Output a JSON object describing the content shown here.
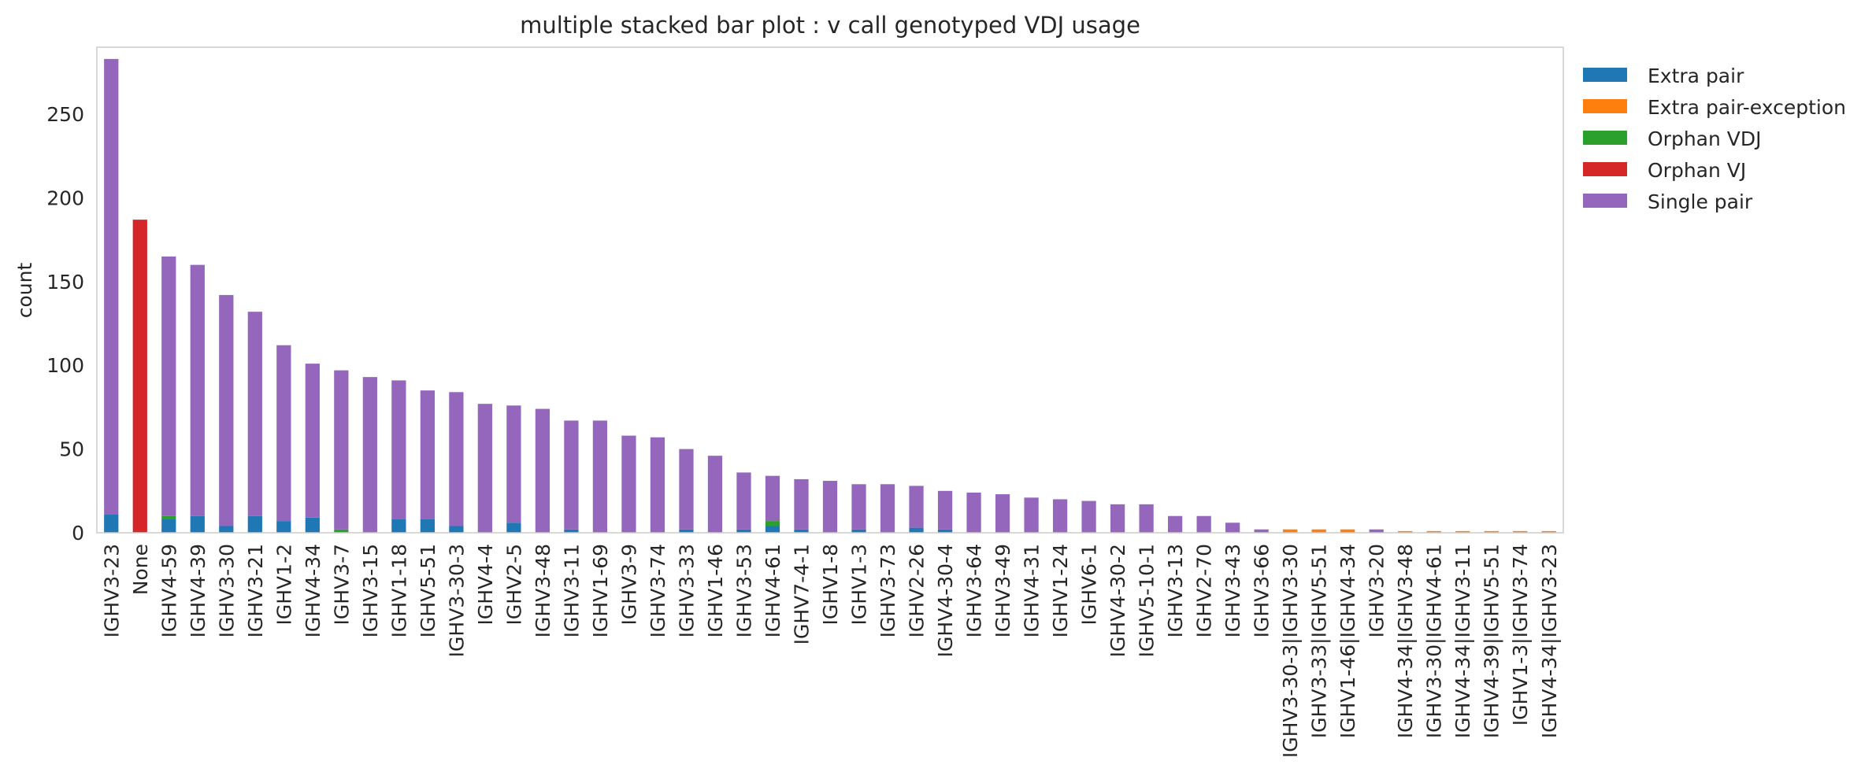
{
  "chart_data": {
    "type": "bar",
    "stacked": true,
    "title": "multiple stacked bar plot : v call genotyped VDJ usage",
    "xlabel": "",
    "ylabel": "count",
    "ylim": [
      0,
      290
    ],
    "yticks": [
      0,
      50,
      100,
      150,
      200,
      250
    ],
    "grid": false,
    "legend_position": "outside-right",
    "categories": [
      "IGHV3-23",
      "None",
      "IGHV4-59",
      "IGHV4-39",
      "IGHV3-30",
      "IGHV3-21",
      "IGHV1-2",
      "IGHV4-34",
      "IGHV3-7",
      "IGHV3-15",
      "IGHV1-18",
      "IGHV5-51",
      "IGHV3-30-3",
      "IGHV4-4",
      "IGHV2-5",
      "IGHV3-48",
      "IGHV3-11",
      "IGHV1-69",
      "IGHV3-9",
      "IGHV3-74",
      "IGHV3-33",
      "IGHV1-46",
      "IGHV3-53",
      "IGHV4-61",
      "IGHV7-4-1",
      "IGHV1-8",
      "IGHV1-3",
      "IGHV3-73",
      "IGHV2-26",
      "IGHV4-30-4",
      "IGHV3-64",
      "IGHV3-49",
      "IGHV4-31",
      "IGHV1-24",
      "IGHV6-1",
      "IGHV4-30-2",
      "IGHV5-10-1",
      "IGHV3-13",
      "IGHV2-70",
      "IGHV3-43",
      "IGHV3-66",
      "IGHV3-30-3|IGHV3-30",
      "IGHV3-33|IGHV5-51",
      "IGHV1-46|IGHV4-34",
      "IGHV3-20",
      "IGHV4-34|IGHV3-48",
      "IGHV3-30|IGHV4-61",
      "IGHV4-34|IGHV3-11",
      "IGHV4-39|IGHV5-51",
      "IGHV1-3|IGHV3-74",
      "IGHV4-34|IGHV3-23"
    ],
    "series": [
      {
        "name": "Extra pair",
        "color": "#1f77b4",
        "values": [
          11,
          0,
          8,
          10,
          4,
          10,
          7,
          9,
          0,
          0,
          8,
          8,
          4,
          0,
          6,
          0,
          2,
          0,
          0,
          0,
          2,
          0,
          2,
          4,
          2,
          0,
          2,
          0,
          3,
          2,
          0,
          0,
          0,
          0,
          0,
          0,
          0,
          0,
          0,
          0,
          0,
          0,
          0,
          0,
          0,
          0,
          0,
          0,
          0,
          0,
          0
        ]
      },
      {
        "name": "Extra pair-exception",
        "color": "#ff7f0e",
        "values": [
          0,
          0,
          0,
          0,
          0,
          0,
          0,
          0,
          0,
          0,
          0,
          0,
          0,
          0,
          0,
          0,
          0,
          0,
          0,
          0,
          0,
          0,
          0,
          0,
          0,
          0,
          0,
          0,
          0,
          0,
          0,
          0,
          0,
          0,
          0,
          0,
          0,
          0,
          0,
          0,
          0,
          2,
          2,
          2,
          0,
          1,
          1,
          1,
          1,
          1,
          1
        ]
      },
      {
        "name": "Orphan VDJ",
        "color": "#2ca02c",
        "values": [
          0,
          0,
          2,
          0,
          0,
          0,
          0,
          0,
          2,
          0,
          0,
          0,
          0,
          0,
          0,
          0,
          0,
          0,
          0,
          0,
          0,
          0,
          0,
          3,
          0,
          0,
          0,
          0,
          0,
          0,
          0,
          0,
          0,
          0,
          0,
          0,
          0,
          0,
          0,
          0,
          0,
          0,
          0,
          0,
          0,
          0,
          0,
          0,
          0,
          0,
          0
        ]
      },
      {
        "name": "Orphan VJ",
        "color": "#d62728",
        "values": [
          0,
          187,
          0,
          0,
          0,
          0,
          0,
          0,
          0,
          0,
          0,
          0,
          0,
          0,
          0,
          0,
          0,
          0,
          0,
          0,
          0,
          0,
          0,
          0,
          0,
          0,
          0,
          0,
          0,
          0,
          0,
          0,
          0,
          0,
          0,
          0,
          0,
          0,
          0,
          0,
          0,
          0,
          0,
          0,
          0,
          0,
          0,
          0,
          0,
          0,
          0
        ]
      },
      {
        "name": "Single pair",
        "color": "#9467bd",
        "values": [
          272,
          0,
          155,
          150,
          138,
          122,
          105,
          92,
          95,
          93,
          83,
          77,
          80,
          77,
          70,
          74,
          65,
          67,
          58,
          57,
          48,
          46,
          34,
          27,
          30,
          31,
          27,
          29,
          25,
          23,
          24,
          23,
          21,
          20,
          19,
          17,
          17,
          10,
          10,
          6,
          2,
          0,
          0,
          0,
          2,
          0,
          0,
          0,
          0,
          0,
          0
        ]
      }
    ]
  }
}
